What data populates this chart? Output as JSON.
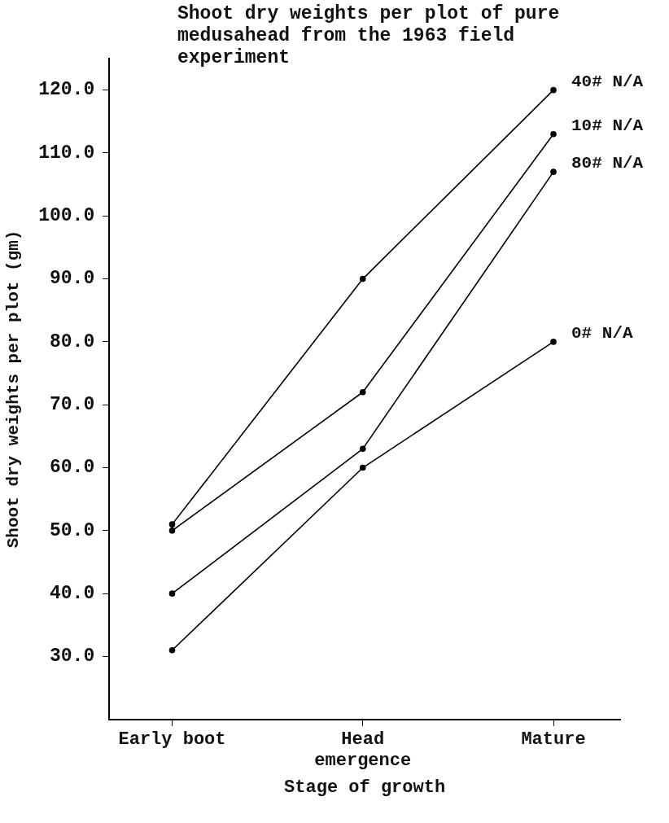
{
  "chart_data": {
    "type": "line",
    "title": "Shoot dry weights per plot of pure medusahead from the 1963 field experiment",
    "xlabel": "Stage of growth",
    "ylabel": "Shoot dry weights per plot (gm)",
    "categories": [
      "Early boot",
      "Head emergence",
      "Mature"
    ],
    "series": [
      {
        "name": "40# N/A",
        "color": "#000000",
        "values": [
          51,
          90,
          120
        ]
      },
      {
        "name": "10# N/A",
        "color": "#000000",
        "values": [
          50,
          72,
          113
        ]
      },
      {
        "name": "80# N/A",
        "color": "#000000",
        "values": [
          40,
          63,
          107
        ]
      },
      {
        "name": "0# N/A",
        "color": "#000000",
        "values": [
          31,
          60,
          80
        ]
      }
    ],
    "ylim": [
      20,
      125
    ],
    "yticks": [
      {
        "value": 30,
        "label": "30.0"
      },
      {
        "value": 40,
        "label": "40.0"
      },
      {
        "value": 50,
        "label": "50.0"
      },
      {
        "value": 60,
        "label": "60.0"
      },
      {
        "value": 70,
        "label": "70.0"
      },
      {
        "value": 80,
        "label": "80.0"
      },
      {
        "value": 90,
        "label": "90.0"
      },
      {
        "value": 100,
        "label": "100.0"
      },
      {
        "value": 110,
        "label": "110.0"
      },
      {
        "value": 120,
        "label": "120.0"
      }
    ],
    "grid": false,
    "legend": false,
    "marker": "circle",
    "line_style": "solid"
  }
}
